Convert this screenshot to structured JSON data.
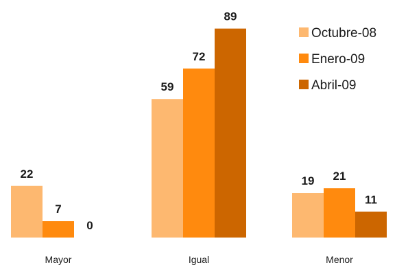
{
  "chart_data": {
    "type": "bar",
    "categories": [
      "Mayor",
      "Igual",
      "Menor"
    ],
    "series": [
      {
        "name": "Octubre-08",
        "values": [
          22,
          59,
          19
        ],
        "color": "#fdb870"
      },
      {
        "name": "Enero-09",
        "values": [
          7,
          72,
          21
        ],
        "color": "#ff8a0e"
      },
      {
        "name": "Abril-09",
        "values": [
          0,
          89,
          11
        ],
        "color": "#cc6600"
      }
    ],
    "ylim": [
      0,
      100
    ],
    "grid": false,
    "legend": "top-right",
    "data_labels": true
  }
}
